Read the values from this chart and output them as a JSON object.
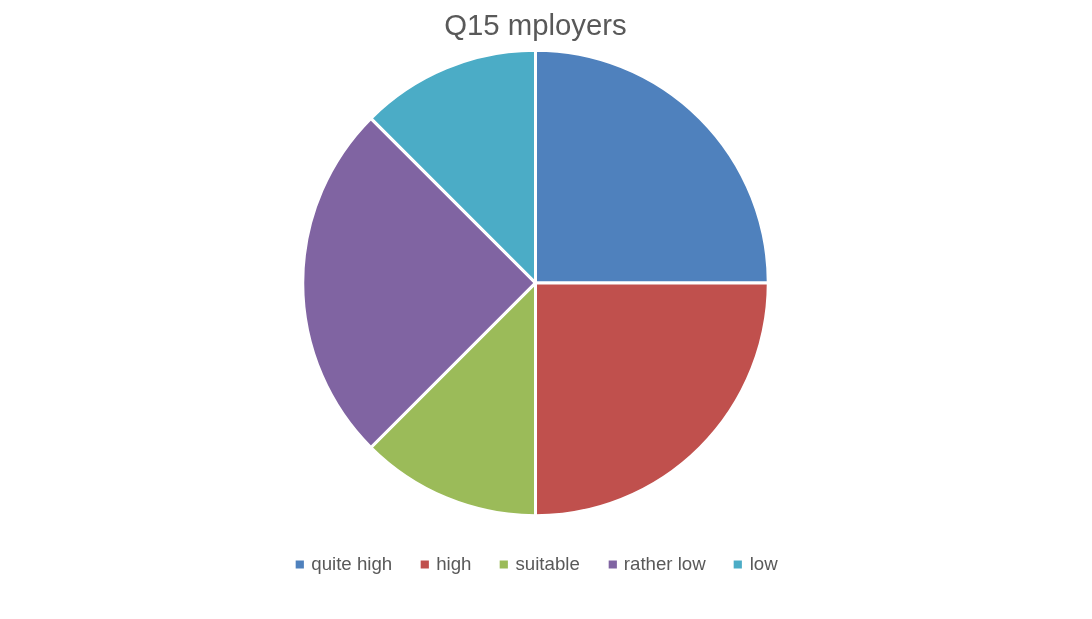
{
  "chart_data": {
    "type": "pie",
    "title": "Q15 mployers",
    "categories": [
      "quite high",
      "high",
      "suitable",
      "rather low",
      "low"
    ],
    "values": [
      25,
      25,
      12.5,
      25,
      12.5
    ],
    "colors": [
      "#4f81bd",
      "#c0504d",
      "#9bbb59",
      "#8064a2",
      "#4bacc6"
    ],
    "legend": "bottom"
  }
}
